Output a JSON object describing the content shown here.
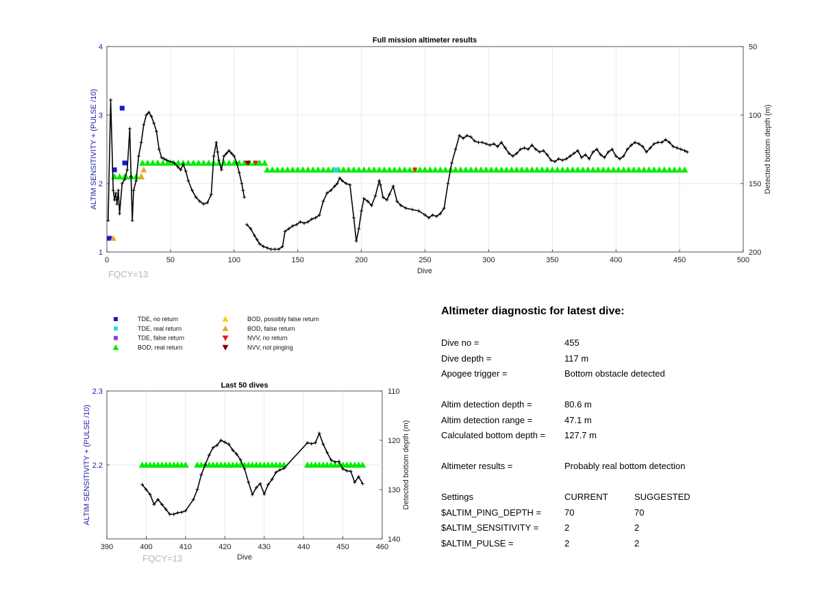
{
  "colors": {
    "black_line": "#000000",
    "bod_real": "#00ee00",
    "tde_no_return": "#1a1acc",
    "tde_real_return": "#22ddee",
    "tde_false_return": "#8a3fcf",
    "bod_possibly_false": "#f5d000",
    "bod_false": "#f0a020",
    "nvv_no_return": "#e02020",
    "nvv_not_pinging": "#7a0000",
    "left_axis": "#1a1aa6",
    "fqcy": "#b5b5b5"
  },
  "chart_data": [
    {
      "type": "scatter",
      "title": "Full mission altimeter results",
      "xlabel": "Dive",
      "ylabel_left": "ALTIM SENSITIVITY + (PULSE /10)",
      "ylabel_right": "Detected bottom depth (m)",
      "xlim": [
        0,
        500
      ],
      "ylim_left": [
        1,
        4
      ],
      "ylim_right": [
        200,
        50
      ],
      "xticks": [
        0,
        50,
        100,
        150,
        200,
        250,
        300,
        350,
        400,
        450,
        500
      ],
      "yticks_left": [
        1,
        2,
        3,
        4
      ],
      "yticks_right": [
        50,
        100,
        150,
        200
      ],
      "grid": true,
      "annotation": "FQCY=13",
      "bottom_depth": {
        "x": [
          1,
          3,
          5,
          6,
          7,
          8,
          9,
          10,
          12,
          14,
          16,
          18,
          19,
          20,
          21,
          23,
          25,
          27,
          29,
          31,
          33,
          35,
          37,
          39,
          41,
          43,
          45,
          47,
          50,
          53,
          56,
          58,
          60,
          62,
          64,
          67,
          70,
          73,
          76,
          79,
          82,
          84,
          86,
          87,
          88,
          90,
          92,
          94,
          96,
          98,
          100,
          102,
          104,
          106,
          107,
          108
        ],
        "y": [
          177,
          89,
          155,
          162,
          157,
          165,
          155,
          172,
          150,
          147,
          140,
          110,
          145,
          177,
          155,
          148,
          130,
          120,
          107,
          100,
          98,
          101,
          106,
          112,
          125,
          131,
          132,
          133,
          134,
          135,
          138,
          140,
          136,
          141,
          148,
          155,
          160,
          163,
          165,
          164,
          158,
          130,
          120,
          127,
          133,
          140,
          130,
          128,
          126,
          128,
          130,
          135,
          142,
          150,
          155,
          160
        ]
      },
      "bottom_depth_2": {
        "x": [
          110,
          113,
          116,
          118,
          120,
          123,
          126,
          129,
          132,
          135,
          138,
          140,
          143,
          146,
          149,
          152,
          155,
          158,
          161,
          164,
          167,
          170,
          173,
          176,
          179,
          181,
          183,
          185,
          188,
          191,
          194,
          196,
          198,
          200,
          202,
          205,
          208,
          211,
          214,
          215,
          217,
          220,
          222,
          225,
          228,
          231,
          235,
          240,
          245,
          250,
          253,
          256,
          259,
          262,
          265,
          268,
          271,
          274,
          277,
          280,
          283,
          286,
          289,
          292,
          295,
          298,
          301,
          304,
          307,
          310,
          313,
          316,
          319,
          322,
          325,
          328,
          331,
          334,
          337,
          340,
          343,
          346,
          349,
          352,
          355,
          358,
          361,
          364,
          367,
          370,
          373,
          376,
          379,
          382,
          385,
          388,
          391,
          394,
          397,
          400,
          403,
          406,
          409,
          412,
          415,
          418,
          421,
          424,
          427,
          430,
          433,
          436,
          439,
          442,
          445,
          448,
          451,
          454,
          456
        ],
        "y": [
          180,
          183,
          188,
          191,
          194,
          196,
          197,
          198,
          198,
          198,
          196,
          185,
          183,
          181,
          180,
          178,
          179,
          178,
          176,
          175,
          173,
          163,
          157,
          155,
          152,
          150,
          146,
          148,
          150,
          151,
          175,
          192,
          183,
          170,
          161,
          163,
          166,
          159,
          148,
          151,
          160,
          162,
          158,
          152,
          163,
          166,
          168,
          169,
          170,
          173,
          175,
          173,
          174,
          172,
          168,
          150,
          135,
          125,
          115,
          117,
          115,
          116,
          119,
          120,
          120,
          121,
          122,
          121,
          123,
          120,
          124,
          128,
          130,
          128,
          125,
          124,
          125,
          122,
          125,
          127,
          126,
          129,
          133,
          134,
          132,
          133,
          132,
          130,
          128,
          126,
          131,
          129,
          132,
          127,
          125,
          129,
          131,
          127,
          125,
          130,
          132,
          130,
          125,
          122,
          120,
          121,
          123,
          127,
          124,
          121,
          120,
          120,
          118,
          120,
          123,
          124,
          125,
          126,
          127
        ]
      },
      "bod_real_return": {
        "segments": [
          {
            "x_from": 6,
            "x_to": 14,
            "y": 2.1
          },
          {
            "x_from": 15,
            "x_to": 28,
            "y": 2.1
          },
          {
            "x_from": 28,
            "x_to": 126,
            "y": 2.3
          },
          {
            "x_from": 126,
            "x_to": 456,
            "y": 2.2
          }
        ]
      },
      "tde_no_return": {
        "x": [
          2,
          6,
          12,
          14
        ],
        "y": [
          1.2,
          2.2,
          3.1,
          2.3
        ]
      },
      "bod_false_return": {
        "x": [
          5,
          27,
          29
        ],
        "y": [
          1.2,
          2.1,
          2.2
        ]
      },
      "nvv_no_return": {
        "x": [
          110,
          117,
          242
        ],
        "y": [
          2.3,
          2.3,
          2.2
        ]
      },
      "nvv_not_pinging": {
        "x": [
          111
        ],
        "y": [
          2.3
        ]
      },
      "tde_real_return": {
        "x": [
          180
        ],
        "y": [
          2.2
        ]
      }
    },
    {
      "type": "scatter",
      "title": "Last 50 dives",
      "xlabel": "Dive",
      "ylabel_left": "ALTIM SENSITIVITY + (PULSE /10)",
      "ylabel_right": "Detected bottom depth (m)",
      "xlim": [
        390,
        460
      ],
      "ylim_left": [
        2.1,
        2.3
      ],
      "ylim_right": [
        140,
        110
      ],
      "xticks": [
        390,
        400,
        410,
        420,
        430,
        440,
        450,
        460
      ],
      "yticks_left": [
        2.3,
        2.2
      ],
      "yticks_right": [
        110,
        120,
        130,
        140
      ],
      "grid": true,
      "annotation": "FQCY=13",
      "bottom_depth": {
        "x": [
          399,
          400,
          401,
          402,
          403,
          404,
          405,
          406,
          407,
          408,
          409,
          410,
          412,
          413,
          414,
          415,
          416,
          417,
          418,
          419,
          420,
          421,
          422,
          423,
          424,
          425,
          426,
          427,
          428,
          429,
          430,
          431,
          432,
          433,
          434,
          435,
          441,
          442,
          443,
          444,
          445,
          446,
          447,
          448,
          449,
          450,
          451,
          452,
          453,
          454,
          455
        ],
        "y": [
          129,
          130,
          131,
          133,
          132,
          133,
          134,
          135,
          135,
          134.7,
          134.6,
          134.3,
          132,
          130,
          127,
          125,
          123,
          121.5,
          121,
          120,
          120.4,
          120.8,
          122,
          122.8,
          124,
          125.8,
          128.5,
          131,
          129.6,
          128.8,
          130.9,
          129,
          127.9,
          126.5,
          126,
          125.7,
          120.5,
          120.7,
          120.5,
          118.6,
          120.8,
          122.5,
          124,
          124.4,
          124.3,
          125.8,
          126.2,
          126.3,
          128.5,
          127.4,
          128.8
        ]
      },
      "bod_real_return": {
        "segments": [
          {
            "x_from": 399,
            "x_to": 410,
            "y": 2.2
          },
          {
            "x_from": 413,
            "x_to": 435,
            "y": 2.2
          },
          {
            "x_from": 441,
            "x_to": 455,
            "y": 2.2
          }
        ]
      }
    }
  ],
  "legend": {
    "items": [
      {
        "label": "TDE, no return",
        "marker": "square",
        "color": "#1a1acc"
      },
      {
        "label": "TDE, real return",
        "marker": "square",
        "color": "#22ddee"
      },
      {
        "label": "TDE, false return",
        "marker": "square",
        "color": "#8a3fcf"
      },
      {
        "label": "BOD, real return",
        "marker": "triangle-up",
        "color": "#00ee00"
      },
      {
        "label": "BOD, possibly false return",
        "marker": "triangle-up",
        "color": "#f5d000"
      },
      {
        "label": "BOD, false return",
        "marker": "triangle-up",
        "color": "#f0a020"
      },
      {
        "label": "NVV, no return",
        "marker": "triangle-down",
        "color": "#e02020"
      },
      {
        "label": "NVV, not pinging",
        "marker": "triangle-down",
        "color": "#7a0000"
      }
    ]
  },
  "diagnostic": {
    "title": "Altimeter diagnostic for latest dive:",
    "dive_no_label": "Dive no =",
    "dive_no_value": "455",
    "dive_depth_label": "Dive depth =",
    "dive_depth_value": "117 m",
    "apogee_label": "Apogee trigger =",
    "apogee_value": "Bottom obstacle detected",
    "det_depth_label": "Altim detection depth =",
    "det_depth_value": "80.6 m",
    "det_range_label": "Altim detection range =",
    "det_range_value": "47.1 m",
    "calc_depth_label": "Calculated bottom depth =",
    "calc_depth_value": "127.7 m",
    "results_label": "Altimeter results =",
    "results_value": "Probably real bottom detection",
    "settings_label": "Settings",
    "current_label": "CURRENT",
    "suggested_label": "SUGGESTED",
    "ping_label": "$ALTIM_PING_DEPTH =",
    "ping_current": "70",
    "ping_suggested": "70",
    "sens_label": "$ALTIM_SENSITIVITY =",
    "sens_current": "2",
    "sens_suggested": "2",
    "pulse_label": "$ALTIM_PULSE =",
    "pulse_current": "2",
    "pulse_suggested": "2"
  }
}
